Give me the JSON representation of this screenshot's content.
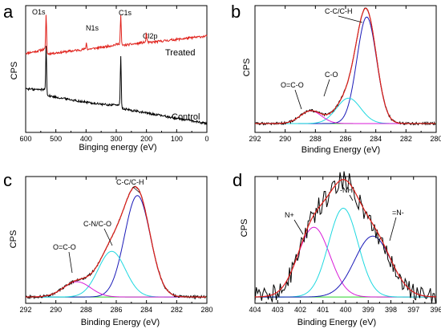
{
  "figure": {
    "colors": {
      "black": "#000000",
      "red": "#e0201a",
      "blue": "#1a1ab8",
      "cyan": "#1ed8e0",
      "magenta": "#d81ad8",
      "green": "#2ad22a",
      "gray": "#888888"
    }
  },
  "chart_data": [
    {
      "panel": "a",
      "type": "line",
      "xlabel": "Binging energy (eV)",
      "ylabel": "CPS",
      "xlim": [
        600,
        0
      ],
      "x_ticks": [
        "600",
        "500",
        "400",
        "300",
        "200",
        "100",
        "0"
      ],
      "tick_values": [
        600,
        500,
        400,
        300,
        200,
        100,
        0
      ],
      "y_ticks_visible": false,
      "series": [
        {
          "name": "Treated",
          "color": "#e0201a",
          "baseline_start": 0.6,
          "baseline_end": 0.76,
          "peaks": [
            {
              "label": "O1s",
              "x": 532,
              "height": 0.29
            },
            {
              "label": "N1s",
              "x": 399,
              "height": 0.05
            },
            {
              "label": "C1s",
              "x": 285,
              "height": 0.24
            },
            {
              "label": "Cl2p",
              "x": 200,
              "height": 0.08
            }
          ]
        },
        {
          "name": "Control",
          "color": "#000000",
          "baseline_start": 0.32,
          "baseline_end": 0.07,
          "peaks": [
            {
              "label": "O1s",
              "x": 532,
              "height": 0.37
            },
            {
              "label": "C1s",
              "x": 285,
              "height": 0.42
            }
          ]
        }
      ],
      "annotations": [
        "O1s",
        "N1s",
        "C1s",
        "Cl2p",
        "Treated",
        "Control"
      ]
    },
    {
      "panel": "b",
      "type": "line",
      "xlabel": "Binding Energy (eV)",
      "ylabel": "CPS",
      "xlim": [
        292,
        280
      ],
      "x_ticks": [
        "292",
        "290",
        "288",
        "286",
        "284",
        "282",
        "280"
      ],
      "tick_values": [
        292,
        290,
        288,
        286,
        284,
        282,
        280
      ],
      "y_ticks_visible": false,
      "components": [
        {
          "label": "C-C/C-H",
          "center": 284.6,
          "height": 0.84,
          "width": 0.65,
          "color": "#1a1ab8"
        },
        {
          "label": "C-O",
          "center": 285.8,
          "height": 0.2,
          "width": 0.8,
          "color": "#1ed8e0"
        },
        {
          "label": "O=C-O",
          "center": 288.3,
          "height": 0.1,
          "width": 0.7,
          "color": "#d81ad8"
        }
      ],
      "background_level": 0.04,
      "annotations": [
        "C-C/C-H",
        "C-O",
        "O=C-O"
      ]
    },
    {
      "panel": "c",
      "type": "line",
      "xlabel": "Binding Energy (eV)",
      "ylabel": "CPS",
      "xlim": [
        292,
        280
      ],
      "x_ticks": [
        "292",
        "290",
        "288",
        "286",
        "284",
        "282",
        "280"
      ],
      "tick_values": [
        292,
        290,
        288,
        286,
        284,
        282,
        280
      ],
      "y_ticks_visible": false,
      "components": [
        {
          "label": "C-C/C-H",
          "center": 284.6,
          "height": 0.8,
          "width": 0.85,
          "color": "#1a1ab8"
        },
        {
          "label": "C-N/C-O",
          "center": 286.3,
          "height": 0.36,
          "width": 0.9,
          "color": "#1ed8e0"
        },
        {
          "label": "O=C-O",
          "center": 288.6,
          "height": 0.12,
          "width": 0.9,
          "color": "#d81ad8"
        }
      ],
      "background_level": 0.02,
      "annotations": [
        "C-C/C-H",
        "C-N/C-O",
        "O=C-O"
      ]
    },
    {
      "panel": "d",
      "type": "line",
      "xlabel": "Binding Energy (eV)",
      "ylabel": "CPS",
      "xlim": [
        404,
        396
      ],
      "x_ticks": [
        "404",
        "403",
        "402",
        "401",
        "400",
        "399",
        "398",
        "397",
        "396"
      ],
      "tick_values": [
        404,
        403,
        402,
        401,
        400,
        399,
        398,
        397,
        396
      ],
      "y_ticks_visible": false,
      "components": [
        {
          "label": "N+",
          "center": 401.4,
          "height": 0.55,
          "width": 0.7,
          "color": "#d81ad8"
        },
        {
          "label": "-NH-",
          "center": 400.1,
          "height": 0.7,
          "width": 0.65,
          "color": "#1ed8e0"
        },
        {
          "label": "=N-",
          "center": 398.8,
          "height": 0.48,
          "width": 0.8,
          "color": "#1a1ab8"
        }
      ],
      "background_level": 0.02,
      "annotations": [
        "N+",
        "-NH-",
        "=N-"
      ]
    }
  ],
  "panels": [
    {
      "letter": "a"
    },
    {
      "letter": "b"
    },
    {
      "letter": "c"
    },
    {
      "letter": "d"
    }
  ]
}
